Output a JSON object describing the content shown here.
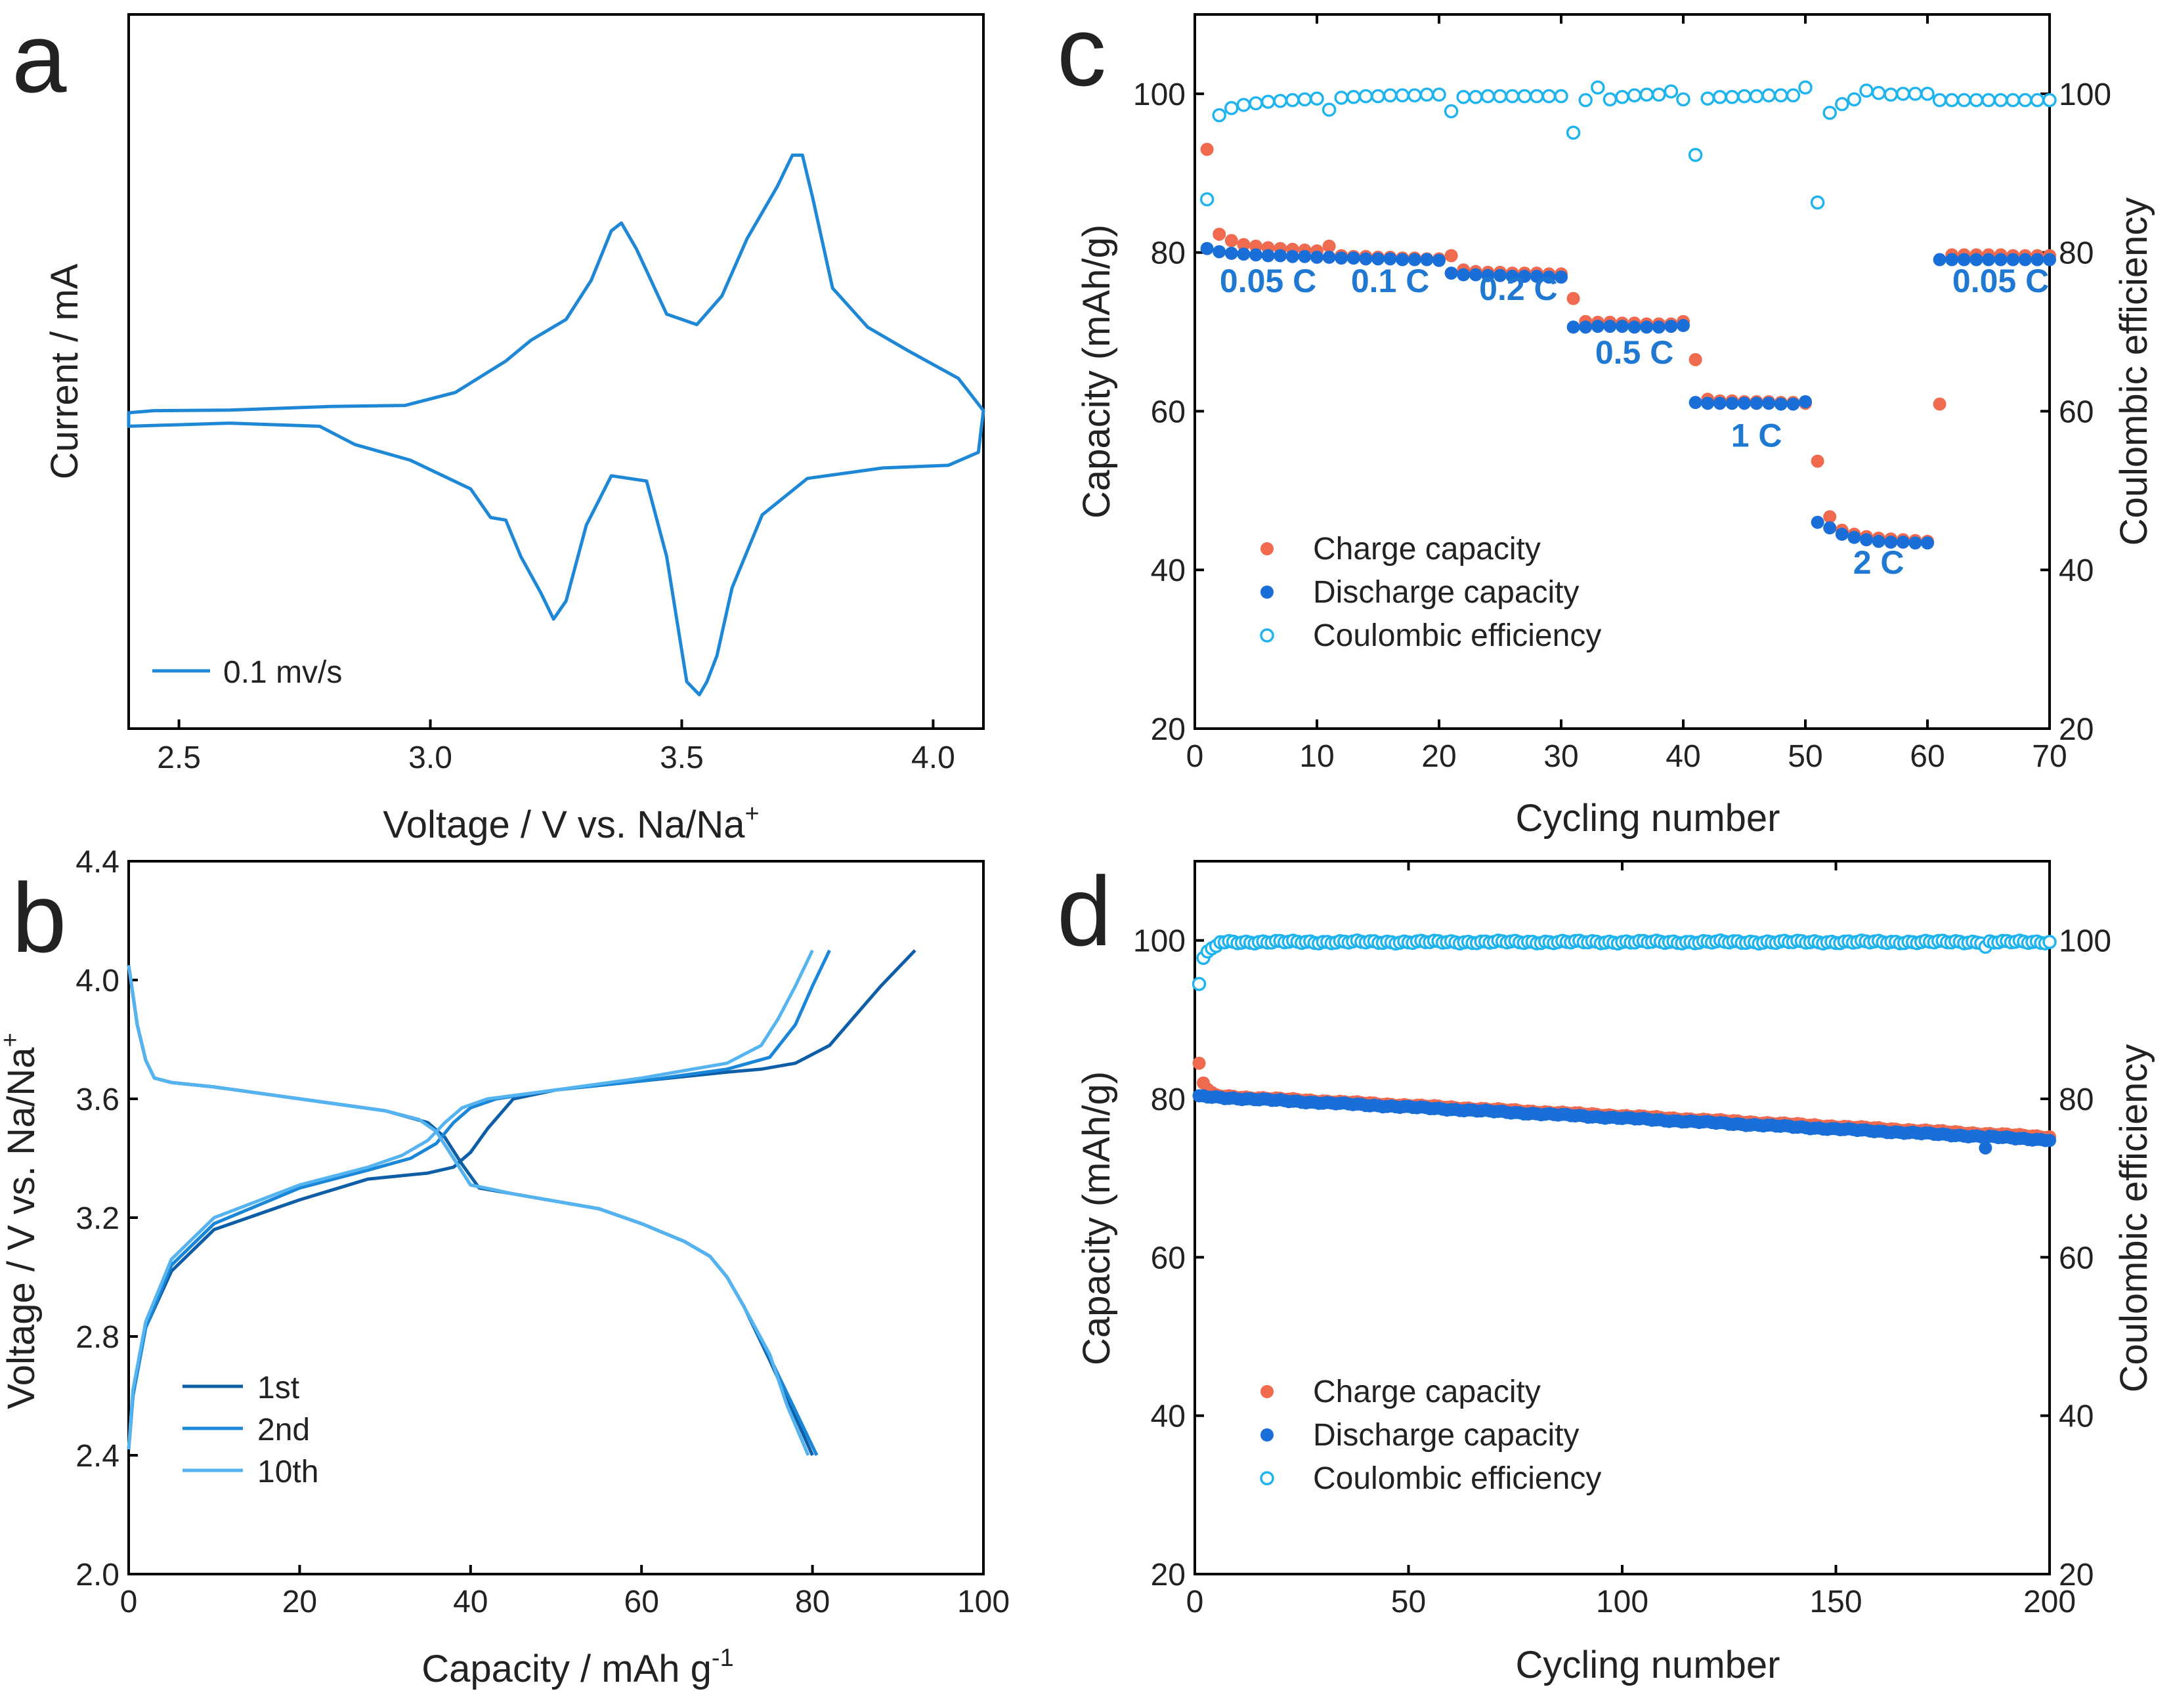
{
  "colors": {
    "cv": "#1e88d6",
    "first": "#0d5ea6",
    "second": "#1a86d8",
    "tenth": "#55b4f0",
    "charge": "#ef6a4f",
    "discharge": "#1a6ed8",
    "ce": "#1fb4ee",
    "rate_label": "#1f78d1"
  },
  "chart_data": [
    {
      "panel": "a",
      "type": "line",
      "xlabel_main": "Voltage / V vs. Na/Na",
      "xlabel_sup": "+",
      "ylabel": "Current / mA",
      "xlim": [
        2.4,
        4.1
      ],
      "xticks": [
        "2.5",
        "3.0",
        "3.5",
        "4.0"
      ],
      "legend": [
        "0.1 mv/s"
      ],
      "series": [
        {
          "name": "0.1 mv/s",
          "x": [
            2.4,
            2.45,
            2.6,
            2.8,
            2.95,
            3.05,
            3.15,
            3.2,
            3.27,
            3.32,
            3.36,
            3.38,
            3.41,
            3.47,
            3.53,
            3.58,
            3.63,
            3.69,
            3.72,
            3.74,
            3.76,
            3.8,
            3.87,
            3.95,
            4.05,
            4.1,
            4.09,
            4.03,
            3.9,
            3.75,
            3.66,
            3.6,
            3.57,
            3.55,
            3.535,
            3.51,
            3.47,
            3.43,
            3.36,
            3.31,
            3.27,
            3.245,
            3.22,
            3.18,
            3.15,
            3.12,
            3.08,
            2.96,
            2.85,
            2.78,
            2.6,
            2.4
          ],
          "y": [
            -0.04,
            0.0,
            0.01,
            0.08,
            0.1,
            0.35,
            0.95,
            1.35,
            1.75,
            2.5,
            3.45,
            3.6,
            3.1,
            1.85,
            1.65,
            2.2,
            3.3,
            4.3,
            4.9,
            4.9,
            4.1,
            2.35,
            1.6,
            1.15,
            0.62,
            0.0,
            -0.8,
            -1.05,
            -1.1,
            -1.3,
            -2.0,
            -3.4,
            -4.7,
            -5.2,
            -5.45,
            -5.2,
            -2.8,
            -1.35,
            -1.25,
            -2.2,
            -3.65,
            -4.0,
            -3.5,
            -2.8,
            -2.1,
            -2.05,
            -1.5,
            -0.95,
            -0.65,
            -0.3,
            -0.24,
            -0.3
          ]
        }
      ]
    },
    {
      "panel": "b",
      "type": "line",
      "xlabel_main": "Capacity / mAh g",
      "xlabel_sup": "-1",
      "ylabel": "Voltage / V vs. Na/Na",
      "ylabel_sup": "+",
      "xlim": [
        0,
        100
      ],
      "ylim": [
        2.0,
        4.4
      ],
      "xticks": [
        "0",
        "20",
        "40",
        "60",
        "80",
        "100"
      ],
      "yticks": [
        "2.0",
        "2.4",
        "2.8",
        "3.2",
        "3.6",
        "4.0",
        "4.4"
      ],
      "legend": [
        "1st",
        "2nd",
        "10th"
      ],
      "series": [
        {
          "name": "1st",
          "charge": {
            "x": [
              0,
              0.5,
              2,
              5,
              10,
              20,
              28,
              35,
              38,
              40,
              42,
              45,
              50,
              60,
              70,
              74,
              78,
              82,
              85,
              88,
              92
            ],
            "y": [
              2.42,
              2.6,
              2.83,
              3.02,
              3.16,
              3.26,
              3.33,
              3.35,
              3.37,
              3.42,
              3.5,
              3.6,
              3.63,
              3.66,
              3.69,
              3.7,
              3.72,
              3.78,
              3.88,
              3.98,
              4.1
            ]
          },
          "discharge": {
            "x": [
              0,
              0.5,
              1,
              2,
              3,
              5,
              10,
              20,
              30,
              35,
              37,
              39,
              41,
              45,
              55,
              60,
              65,
              68,
              70,
              72,
              75,
              78,
              80
            ],
            "y": [
              4.05,
              3.95,
              3.85,
              3.73,
              3.67,
              3.655,
              3.64,
              3.6,
              3.56,
              3.52,
              3.47,
              3.38,
              3.3,
              3.28,
              3.23,
              3.18,
              3.12,
              3.07,
              3.0,
              2.9,
              2.72,
              2.53,
              2.4
            ]
          }
        },
        {
          "name": "2nd",
          "charge": {
            "x": [
              0,
              0.5,
              2,
              5,
              10,
              20,
              28,
              33,
              36,
              38,
              40,
              43,
              50,
              60,
              70,
              75,
              78,
              80,
              82
            ],
            "y": [
              2.42,
              2.6,
              2.83,
              3.04,
              3.18,
              3.3,
              3.36,
              3.4,
              3.45,
              3.52,
              3.57,
              3.6,
              3.63,
              3.66,
              3.7,
              3.74,
              3.85,
              3.98,
              4.1
            ]
          },
          "discharge": {
            "x": [
              0,
              0.5,
              1,
              2,
              3,
              5,
              10,
              20,
              30,
              34,
              36,
              38,
              40,
              45,
              55,
              60,
              65,
              68,
              70,
              72,
              75,
              78,
              80.5
            ],
            "y": [
              4.05,
              3.95,
              3.85,
              3.73,
              3.67,
              3.655,
              3.64,
              3.6,
              3.56,
              3.53,
              3.49,
              3.4,
              3.31,
              3.28,
              3.23,
              3.18,
              3.12,
              3.07,
              3.0,
              2.9,
              2.73,
              2.55,
              2.4
            ]
          }
        },
        {
          "name": "10th",
          "charge": {
            "x": [
              0,
              0.5,
              2,
              5,
              10,
              20,
              28,
              32,
              35,
              37,
              39,
              42,
              50,
              60,
              70,
              74,
              76,
              78,
              80
            ],
            "y": [
              2.42,
              2.62,
              2.85,
              3.06,
              3.2,
              3.31,
              3.37,
              3.41,
              3.46,
              3.52,
              3.57,
              3.6,
              3.63,
              3.67,
              3.72,
              3.78,
              3.87,
              3.98,
              4.1
            ]
          },
          "discharge": {
            "x": [
              0,
              0.5,
              1,
              2,
              3,
              5,
              10,
              20,
              30,
              34,
              36,
              38,
              40,
              45,
              55,
              60,
              65,
              68,
              70,
              72,
              75,
              77,
              79.5
            ],
            "y": [
              4.05,
              3.95,
              3.85,
              3.73,
              3.67,
              3.655,
              3.64,
              3.6,
              3.56,
              3.53,
              3.49,
              3.4,
              3.31,
              3.28,
              3.23,
              3.18,
              3.12,
              3.07,
              3.0,
              2.9,
              2.74,
              2.57,
              2.4
            ]
          }
        }
      ]
    },
    {
      "panel": "c",
      "type": "scatter",
      "xlabel": "Cycling number",
      "ylabel": "Capacity (mAh/g)",
      "y2label": "Coulombic efficiency",
      "xlim": [
        0,
        70
      ],
      "ylim": [
        20,
        110
      ],
      "y2lim": [
        20,
        110
      ],
      "xticks": [
        "0",
        "10",
        "20",
        "30",
        "40",
        "50",
        "60",
        "70"
      ],
      "yticks": [
        "20",
        "40",
        "60",
        "80",
        "100"
      ],
      "y2ticks": [
        "20",
        "40",
        "60",
        "80",
        "100"
      ],
      "legend": [
        "Charge capacity",
        "Discharge capacity",
        "Coulombic efficiency"
      ],
      "rate_labels": [
        {
          "text": "0.05 C",
          "x": 6,
          "y": 76.5
        },
        {
          "text": "0.1 C",
          "x": 16,
          "y": 76.5
        },
        {
          "text": "0.2 C",
          "x": 26.5,
          "y": 75.5
        },
        {
          "text": "0.5 C",
          "x": 36,
          "y": 67.5
        },
        {
          "text": "1 C",
          "x": 46,
          "y": 57
        },
        {
          "text": "2 C",
          "x": 56,
          "y": 41
        },
        {
          "text": "0.05 C",
          "x": 66,
          "y": 76.5
        }
      ],
      "charge": [
        93,
        82.3,
        81.5,
        81,
        80.8,
        80.6,
        80.5,
        80.4,
        80.3,
        80.2,
        80.8,
        79.6,
        79.5,
        79.5,
        79.4,
        79.4,
        79.3,
        79.3,
        79.2,
        79.2,
        79.6,
        77.8,
        77.6,
        77.5,
        77.5,
        77.4,
        77.4,
        77.4,
        77.3,
        77.3,
        74.2,
        71.3,
        71.2,
        71.2,
        71.1,
        71.1,
        71.0,
        71.0,
        71.0,
        71.3,
        66.5,
        61.5,
        61.3,
        61.3,
        61.2,
        61.2,
        61.2,
        61.1,
        61.1,
        61.0,
        53.7,
        46.7,
        45.0,
        44.5,
        44.2,
        44.0,
        43.9,
        43.8,
        43.7,
        43.6,
        60.9,
        79.7,
        79.7,
        79.7,
        79.7,
        79.7,
        79.6,
        79.6,
        79.6,
        79.6
      ],
      "discharge": [
        80.5,
        80.1,
        79.9,
        79.8,
        79.7,
        79.6,
        79.6,
        79.5,
        79.5,
        79.4,
        79.4,
        79.3,
        79.3,
        79.2,
        79.2,
        79.2,
        79.1,
        79.1,
        79.1,
        79.0,
        77.4,
        77.2,
        77.2,
        77.1,
        77.1,
        77.0,
        77.0,
        77.0,
        76.9,
        76.9,
        70.6,
        70.6,
        70.7,
        70.7,
        70.7,
        70.6,
        70.6,
        70.6,
        70.7,
        70.8,
        61.1,
        61.0,
        61.0,
        61.0,
        61.0,
        61.0,
        61.0,
        60.9,
        60.9,
        61.2,
        46.0,
        45.3,
        44.5,
        44.1,
        43.8,
        43.6,
        43.5,
        43.5,
        43.4,
        43.4,
        79.1,
        79.1,
        79.1,
        79.1,
        79.1,
        79.1,
        79.1,
        79.1,
        79.1,
        79.1
      ],
      "ce": [
        86.7,
        97.3,
        98.2,
        98.6,
        98.8,
        99.0,
        99.1,
        99.2,
        99.3,
        99.4,
        98.0,
        99.5,
        99.6,
        99.7,
        99.7,
        99.8,
        99.8,
        99.8,
        99.9,
        99.9,
        97.8,
        99.6,
        99.6,
        99.7,
        99.7,
        99.7,
        99.7,
        99.7,
        99.7,
        99.7,
        95.1,
        99.2,
        100.8,
        99.3,
        99.6,
        99.8,
        99.9,
        99.9,
        100.3,
        99.3,
        92.3,
        99.4,
        99.6,
        99.6,
        99.7,
        99.7,
        99.8,
        99.8,
        99.8,
        100.8,
        86.3,
        97.6,
        98.7,
        99.3,
        100.4,
        100.1,
        99.9,
        100.0,
        100.0,
        100.0,
        99.2,
        99.2,
        99.2,
        99.2,
        99.2,
        99.2,
        99.2,
        99.2,
        99.2,
        99.2
      ]
    },
    {
      "panel": "d",
      "type": "scatter",
      "xlabel": "Cycling number",
      "ylabel": "Capacity (mAh/g)",
      "y2label": "Coulombic efficiency",
      "xlim": [
        0,
        200
      ],
      "ylim": [
        20,
        110
      ],
      "y2lim": [
        20,
        110
      ],
      "xticks": [
        "0",
        "50",
        "100",
        "150",
        "200"
      ],
      "yticks": [
        "20",
        "40",
        "60",
        "80",
        "100"
      ],
      "y2ticks": [
        "20",
        "40",
        "60",
        "80",
        "100"
      ],
      "legend": [
        "Charge capacity",
        "Discharge capacity",
        "Coulombic efficiency"
      ],
      "cycles": 200,
      "charge_first": [
        84.5,
        82.0,
        81.2,
        80.8
      ],
      "charge_start": 80.5,
      "charge_end": 75.2,
      "discharge_start": 80.3,
      "discharge_end": 74.8,
      "ce_first": [
        94.5,
        97.8,
        98.6,
        99.0,
        99.3
      ],
      "ce_steady": 99.8,
      "dip": {
        "cycle": 185,
        "discharge": 73.8,
        "ce": 99.2
      }
    }
  ],
  "figure": {
    "letters": [
      "a",
      "b",
      "c",
      "d"
    ]
  }
}
